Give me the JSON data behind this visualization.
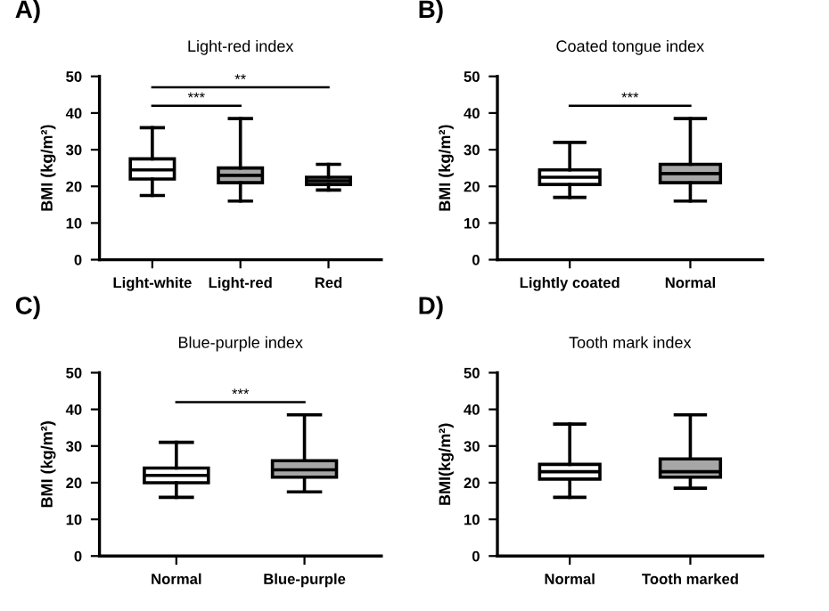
{
  "chart_data": [
    {
      "type": "box",
      "title": "Light-red index",
      "ylabel": "BMI (kg/m²)",
      "categories": [
        "Light-white",
        "Light-red",
        "Red"
      ],
      "colors": [
        "#ffffff",
        "#a6a6a6",
        "#a6a6a6"
      ],
      "ylim": [
        0,
        50
      ],
      "yticks": [
        0,
        10,
        20,
        30,
        40,
        50
      ],
      "grid": false,
      "annotations": [
        "A)",
        "***",
        "**"
      ],
      "boxes": [
        {
          "low": 17.5,
          "q1": 22,
          "median": 24.5,
          "q3": 27.5,
          "high": 36
        },
        {
          "low": 16,
          "q1": 21,
          "median": 23,
          "q3": 25,
          "high": 38.5
        },
        {
          "low": 19,
          "q1": 20.5,
          "median": 21.5,
          "q3": 22.5,
          "high": 26
        }
      ]
    },
    {
      "type": "box",
      "title": "Coated tongue index",
      "ylabel": "BMI (kg/m²)",
      "categories": [
        "Lightly coated",
        "Normal"
      ],
      "colors": [
        "#ffffff",
        "#a6a6a6"
      ],
      "ylim": [
        0,
        50
      ],
      "yticks": [
        0,
        10,
        20,
        30,
        40,
        50
      ],
      "grid": false,
      "annotations": [
        "B)",
        "***"
      ],
      "boxes": [
        {
          "low": 17,
          "q1": 20.5,
          "median": 22.5,
          "q3": 24.5,
          "high": 32
        },
        {
          "low": 16,
          "q1": 21,
          "median": 23.5,
          "q3": 26,
          "high": 38.5
        }
      ]
    },
    {
      "type": "box",
      "title": "Blue-purple index",
      "ylabel": "BMI (kg/m²)",
      "categories": [
        "Normal",
        "Blue-purple"
      ],
      "colors": [
        "#ffffff",
        "#a6a6a6"
      ],
      "ylim": [
        0,
        50
      ],
      "yticks": [
        0,
        10,
        20,
        30,
        40,
        50
      ],
      "grid": false,
      "annotations": [
        "C)",
        "***"
      ],
      "boxes": [
        {
          "low": 16,
          "q1": 20,
          "median": 22,
          "q3": 24,
          "high": 31
        },
        {
          "low": 17.5,
          "q1": 21.5,
          "median": 23.5,
          "q3": 26,
          "high": 38.5
        }
      ]
    },
    {
      "type": "box",
      "title": "Tooth mark index",
      "ylabel": "BMI(kg/m²)",
      "categories": [
        "Normal",
        "Tooth marked"
      ],
      "colors": [
        "#ffffff",
        "#a6a6a6"
      ],
      "ylim": [
        0,
        50
      ],
      "yticks": [
        0,
        10,
        20,
        30,
        40,
        50
      ],
      "grid": false,
      "annotations": [
        "D)"
      ],
      "boxes": [
        {
          "low": 16,
          "q1": 21,
          "median": 23,
          "q3": 25,
          "high": 36
        },
        {
          "low": 18.5,
          "q1": 21.5,
          "median": 23,
          "q3": 26.5,
          "high": 38.5
        }
      ]
    }
  ]
}
